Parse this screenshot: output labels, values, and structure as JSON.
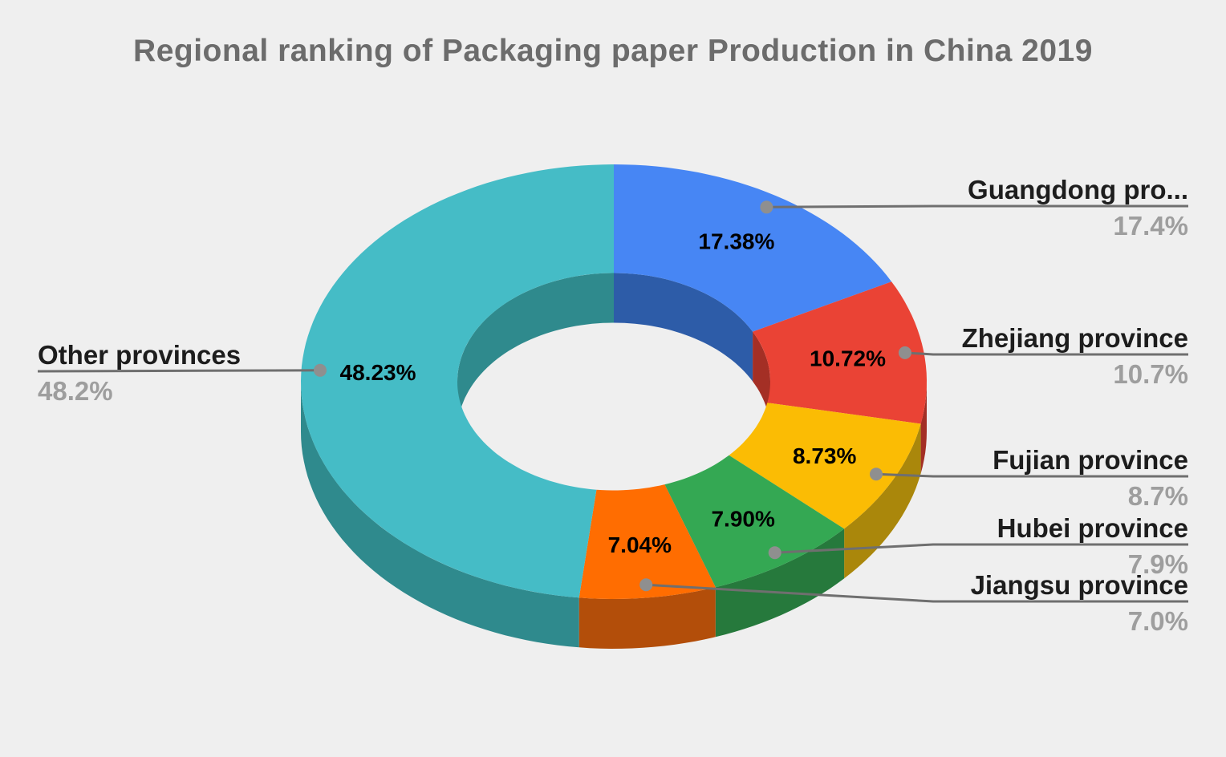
{
  "header": {
    "title": "Regional ranking of Packaging paper Production in China 2019",
    "title_color": "#6C6C6C"
  },
  "page": {
    "background_color": "#EFEFEF"
  },
  "chart_data": {
    "type": "pie",
    "subtype": "donut-3d",
    "title": "Regional ranking of Packaging paper Production in China 2019",
    "donut_hole_ratio": 0.5,
    "start_angle_deg": 0,
    "direction": "clockwise",
    "legend_position": "callout-labels",
    "series": [
      {
        "label": "Guangdong province",
        "callout_label": "Guangdong pro...",
        "value": 17.38,
        "slice_text": "17.38%",
        "callout_value": "17.4%",
        "color": "#4786F4",
        "side_color": "#2D5CA8"
      },
      {
        "label": "Zhejiang province",
        "callout_label": "Zhejiang province",
        "value": 10.72,
        "slice_text": "10.72%",
        "callout_value": "10.7%",
        "color": "#EA4335",
        "side_color": "#A42F25"
      },
      {
        "label": "Fujian province",
        "callout_label": "Fujian province",
        "value": 8.73,
        "slice_text": "8.73%",
        "callout_value": "8.7%",
        "color": "#FBBC04",
        "side_color": "#AA870B"
      },
      {
        "label": "Hubei province",
        "callout_label": "Hubei province",
        "value": 7.9,
        "slice_text": "7.90%",
        "callout_value": "7.9%",
        "color": "#34A853",
        "side_color": "#26793C"
      },
      {
        "label": "Jiangsu province",
        "callout_label": "Jiangsu province",
        "value": 7.04,
        "slice_text": "7.04%",
        "callout_value": "7.0%",
        "color": "#FF6D01",
        "side_color": "#B34E0A"
      },
      {
        "label": "Other provinces",
        "callout_label": "Other provinces",
        "value": 48.23,
        "slice_text": "48.23%",
        "callout_value": "48.2%",
        "color": "#45BCC6",
        "side_color": "#2F8A8D"
      }
    ],
    "styles": {
      "slice_label_color": "#000000",
      "callout_label_color": "#1D1D1D",
      "callout_value_color": "#9E9E9E",
      "leader_line_color": "#6F6F6F",
      "leader_dot_color": "#8F8F8F"
    }
  }
}
